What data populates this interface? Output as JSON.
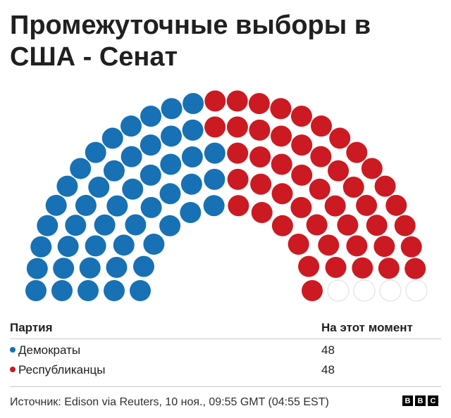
{
  "title": "Промежуточные выборы в США - Сенат",
  "chart_data": {
    "type": "parliament",
    "total_seats": 100,
    "series": [
      {
        "name": "Демократы",
        "value": 48,
        "color": "#1771b4"
      },
      {
        "name": "Республиканцы",
        "value": 48,
        "color": "#cc1a22"
      },
      {
        "name": "",
        "value": 4,
        "color": "#ffffff"
      }
    ]
  },
  "table": {
    "headers": [
      "Партия",
      "На этот момент"
    ],
    "rows": [
      {
        "party": "Демократы",
        "value": "48",
        "color": "#1771b4"
      },
      {
        "party": "Республиканцы",
        "value": "48",
        "color": "#cc1a22"
      }
    ]
  },
  "source": "Источник: Edison via Reuters, 10 ноя., 09:55 GMT (04:55 EST)",
  "logo": [
    "B",
    "B",
    "C"
  ]
}
